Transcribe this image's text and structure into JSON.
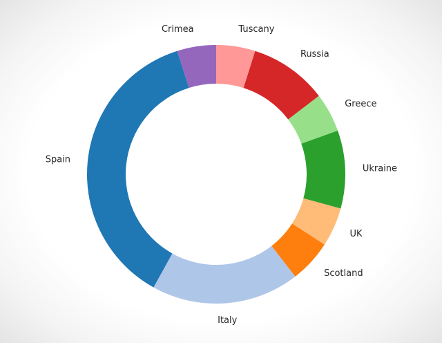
{
  "chart_data": {
    "type": "pie",
    "donut": true,
    "title": "",
    "start_angle_deg": 90,
    "direction": "counterclockwise",
    "categories": [
      "Crimea",
      "Spain",
      "Italy",
      "Scotland",
      "UK",
      "Ukraine",
      "Greece",
      "Russia",
      "Tuscany"
    ],
    "values": [
      5,
      38,
      19,
      5.5,
      5,
      10,
      5,
      10,
      5
    ],
    "colors": [
      "#9467bd",
      "#1f77b4",
      "#aec7e8",
      "#ff7f0e",
      "#ffbb78",
      "#2ca02c",
      "#98df8a",
      "#d62728",
      "#ff9896"
    ],
    "legend": "none",
    "labels": "outside"
  }
}
